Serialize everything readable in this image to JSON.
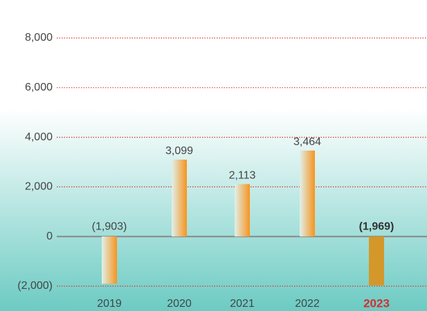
{
  "chart_data": {
    "type": "bar",
    "categories": [
      "2019",
      "2020",
      "2021",
      "2022",
      "2023"
    ],
    "values": [
      -1903,
      3099,
      2113,
      3464,
      -1969
    ],
    "value_labels": [
      "(1,903)",
      "3,099",
      "2,113",
      "3,464",
      "(1,969)"
    ],
    "highlight": [
      false,
      false,
      false,
      false,
      true
    ],
    "color": "#f7941d",
    "highlight_color": "#d4972a",
    "highlight_label_color": "#d32f2f",
    "ylim": [
      -2000,
      8000
    ],
    "yticks": [
      {
        "value": -2000,
        "label": "(2,000)"
      },
      0,
      {
        "value": 2000,
        "label": "2,000"
      },
      {
        "value": 4000,
        "label": "4,000"
      },
      {
        "value": 6000,
        "label": "6,000"
      },
      {
        "value": 8000,
        "label": "8,000"
      }
    ],
    "grid": true
  }
}
